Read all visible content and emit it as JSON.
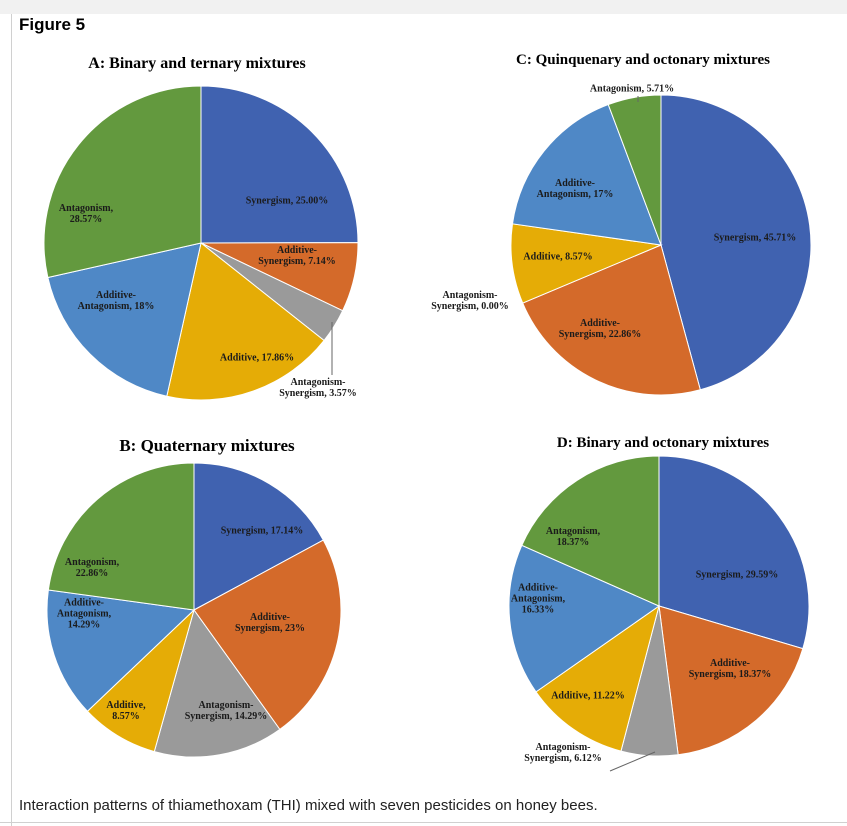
{
  "figure_title": "Figure 5",
  "caption": "Interaction patterns of thiamethoxam (THI) mixed with seven pesticides on honey bees.",
  "colors": {
    "synergism": "#4062b0",
    "additive_synergism": "#d46a2a",
    "antagonism_synergism": "#9a9a9a",
    "additive": "#e5ac06",
    "additive_antagonism": "#4f88c6",
    "antagonism": "#63993e"
  },
  "chart_data": [
    {
      "type": "pie",
      "title": "A: Binary and ternary mixtures",
      "slices": [
        {
          "key": "synergism",
          "label": [
            "Synergism, 25.00%"
          ],
          "value": 25.0
        },
        {
          "key": "additive_synergism",
          "label": [
            "Additive-",
            "Synergism, 7.14%"
          ],
          "value": 7.14
        },
        {
          "key": "antagonism_synergism",
          "label": [
            "Antagonism-",
            "Synergism, 3.57%"
          ],
          "value": 3.57
        },
        {
          "key": "additive",
          "label": [
            "Additive, 17.86%"
          ],
          "value": 17.86
        },
        {
          "key": "additive_antagonism",
          "label": [
            "Additive-",
            "Antagonism, 18%"
          ],
          "value": 18
        },
        {
          "key": "antagonism",
          "label": [
            "Antagonism,",
            "28.57%"
          ],
          "value": 28.57
        }
      ]
    },
    {
      "type": "pie",
      "title": "B: Quaternary  mixtures",
      "slices": [
        {
          "key": "synergism",
          "label": [
            "Synergism, 17.14%"
          ],
          "value": 17.14
        },
        {
          "key": "additive_synergism",
          "label": [
            "Additive-",
            "Synergism, 23%"
          ],
          "value": 23
        },
        {
          "key": "antagonism_synergism",
          "label": [
            "Antagonism-",
            "Synergism, 14.29%"
          ],
          "value": 14.29
        },
        {
          "key": "additive",
          "label": [
            "Additive,",
            "8.57%"
          ],
          "value": 8.57
        },
        {
          "key": "additive_antagonism",
          "label": [
            "Additive-",
            "Antagonism,",
            "14.29%"
          ],
          "value": 14.29
        },
        {
          "key": "antagonism",
          "label": [
            "Antagonism,",
            "22.86%"
          ],
          "value": 22.86
        }
      ]
    },
    {
      "type": "pie",
      "title": "C: Quinquenary and octonary mixtures",
      "slices": [
        {
          "key": "synergism",
          "label": [
            "Synergism, 45.71%"
          ],
          "value": 45.71
        },
        {
          "key": "additive_synergism",
          "label": [
            "Additive-",
            "Synergism, 22.86%"
          ],
          "value": 22.86
        },
        {
          "key": "antagonism_synergism",
          "label": [
            "Antagonism-",
            "Synergism, 0.00%"
          ],
          "value": 0.0
        },
        {
          "key": "additive",
          "label": [
            "Additive, 8.57%"
          ],
          "value": 8.57
        },
        {
          "key": "additive_antagonism",
          "label": [
            "Additive-",
            "Antagonism, 17%"
          ],
          "value": 17
        },
        {
          "key": "antagonism",
          "label": [
            "Antagonism, 5.71%"
          ],
          "value": 5.71
        }
      ]
    },
    {
      "type": "pie",
      "title": "D: Binary and octonary mixtures",
      "slices": [
        {
          "key": "synergism",
          "label": [
            "Synergism, 29.59%"
          ],
          "value": 29.59
        },
        {
          "key": "additive_synergism",
          "label": [
            "Additive-",
            "Synergism, 18.37%"
          ],
          "value": 18.37
        },
        {
          "key": "antagonism_synergism",
          "label": [
            "Antagonism-",
            "Synergism, 6.12%"
          ],
          "value": 6.12
        },
        {
          "key": "additive",
          "label": [
            "Additive, 11.22%"
          ],
          "value": 11.22
        },
        {
          "key": "additive_antagonism",
          "label": [
            "Additive-",
            "Antagonism,",
            "16.33%"
          ],
          "value": 16.33
        },
        {
          "key": "antagonism",
          "label": [
            "Antagonism,",
            "18.37%"
          ],
          "value": 18.37
        }
      ]
    }
  ]
}
